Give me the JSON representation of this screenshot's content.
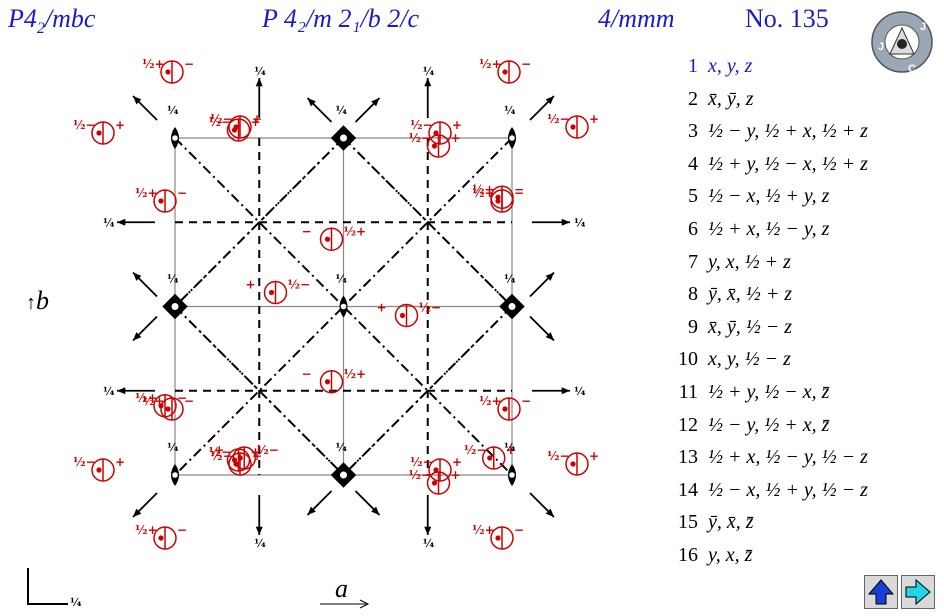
{
  "header": {
    "hm_short_main": "P4",
    "hm_short_sub": "2",
    "hm_short_rest": "/mbc",
    "full_symbol": "P 4₂/m 2₁/b 2/c",
    "point_group": "4/mmm",
    "number": "No. 135"
  },
  "logo": {
    "text": "JKC",
    "icon": "jkc-logo"
  },
  "axes": {
    "b_label": "b",
    "a_label": "a",
    "height_label": "¼"
  },
  "quarter": "¼",
  "half": "½",
  "positions": [
    {
      "n": "1",
      "text": "x, y, z"
    },
    {
      "n": "2",
      "text": "x̄, ȳ, z"
    },
    {
      "n": "3",
      "text": "½ − y, ½ + x, ½ + z"
    },
    {
      "n": "4",
      "text": "½ + y, ½ − x, ½ + z"
    },
    {
      "n": "5",
      "text": "½ − x, ½ + y, z"
    },
    {
      "n": "6",
      "text": "½ + x, ½ − y, z"
    },
    {
      "n": "7",
      "text": "y, x, ½ + z"
    },
    {
      "n": "8",
      "text": "ȳ, x̄, ½ + z"
    },
    {
      "n": "9",
      "text": "x̄, ȳ, ½ − z"
    },
    {
      "n": "10",
      "text": "x, y, ½ − z"
    },
    {
      "n": "11",
      "text": "½ + y, ½ − x, z̄"
    },
    {
      "n": "12",
      "text": "½ − y, ½ + x, z̄"
    },
    {
      "n": "13",
      "text": "½ + x, ½ − y, ½ − z"
    },
    {
      "n": "14",
      "text": "½ − x, ½ + y, ½ − z"
    },
    {
      "n": "15",
      "text": "ȳ, x̄, z̄"
    },
    {
      "n": "16",
      "text": "y, x, z̄"
    }
  ],
  "nav": {
    "prev_icon": "up-arrow-icon",
    "next_icon": "right-arrow-icon"
  },
  "colors": {
    "title": "#1a1acc",
    "positions": "#cc0000"
  }
}
